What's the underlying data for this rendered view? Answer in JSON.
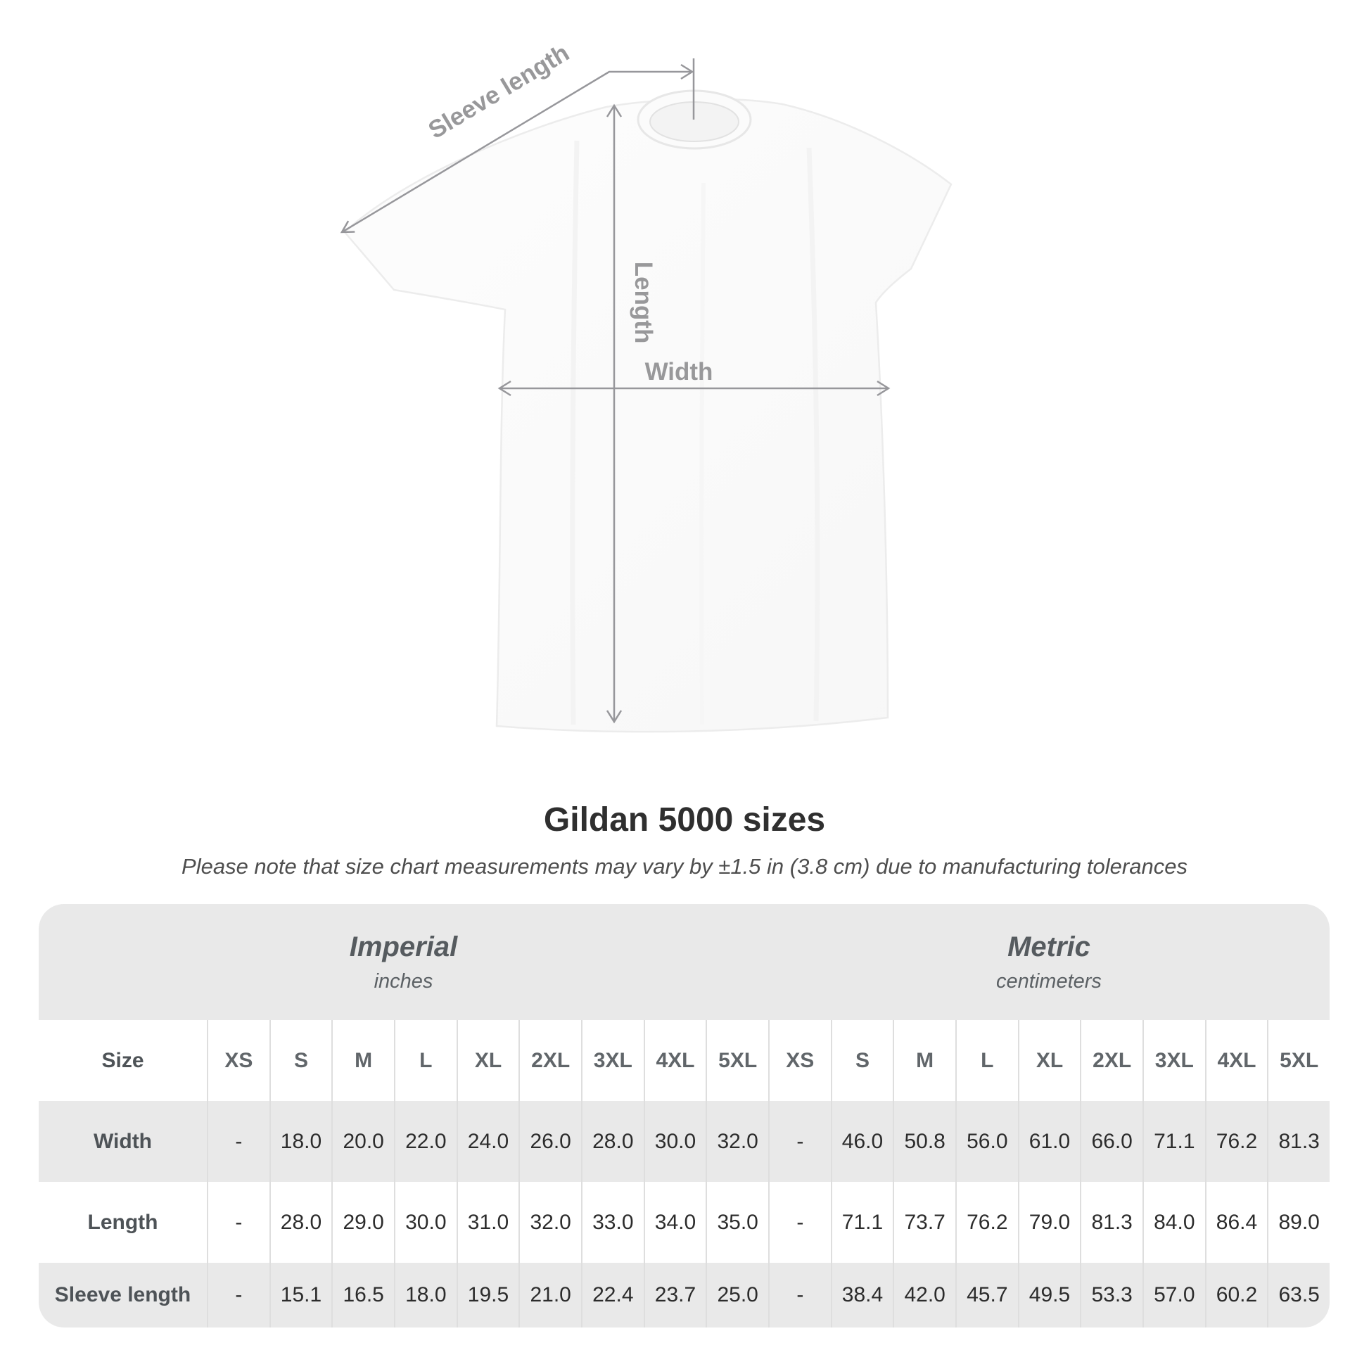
{
  "diagram": {
    "labels": {
      "sleeve_length": "Sleeve length",
      "length": "Length",
      "width": "Width"
    },
    "arrow_color": "#97979b",
    "label_color": "#98989a",
    "shirt_color": "#fcfcfc"
  },
  "title": "Gildan 5000 sizes",
  "subtitle": "Please note that size chart measurements may vary by ±1.5 in (3.8 cm) due to manufacturing tolerances",
  "table": {
    "unit_groups": [
      {
        "name": "Imperial",
        "unit": "inches"
      },
      {
        "name": "Metric",
        "unit": "centimeters"
      }
    ],
    "header": {
      "label": "Size",
      "imperial_sizes": [
        "XS",
        "S",
        "M",
        "L",
        "XL",
        "2XL",
        "3XL",
        "4XL",
        "5XL"
      ],
      "metric_sizes": [
        "XS",
        "S",
        "M",
        "L",
        "XL",
        "2XL",
        "3XL",
        "4XL",
        "5XL"
      ]
    },
    "rows": [
      {
        "label": "Width",
        "imperial": [
          "-",
          "18.0",
          "20.0",
          "22.0",
          "24.0",
          "26.0",
          "28.0",
          "30.0",
          "32.0"
        ],
        "metric": [
          "-",
          "46.0",
          "50.8",
          "56.0",
          "61.0",
          "66.0",
          "71.1",
          "76.2",
          "81.3"
        ]
      },
      {
        "label": "Length",
        "imperial": [
          "-",
          "28.0",
          "29.0",
          "30.0",
          "31.0",
          "32.0",
          "33.0",
          "34.0",
          "35.0"
        ],
        "metric": [
          "-",
          "71.1",
          "73.7",
          "76.2",
          "79.0",
          "81.3",
          "84.0",
          "86.4",
          "89.0"
        ]
      },
      {
        "label": "Sleeve length",
        "imperial": [
          "-",
          "15.1",
          "16.5",
          "18.0",
          "19.5",
          "21.0",
          "22.4",
          "23.7",
          "25.0"
        ],
        "metric": [
          "-",
          "38.4",
          "42.0",
          "45.7",
          "49.5",
          "53.3",
          "57.0",
          "60.2",
          "63.5"
        ]
      }
    ],
    "colors": {
      "container_bg": "#e9e9e9",
      "row_white_bg": "#ffffff",
      "separator": "#dedede",
      "header_text": "#61666a",
      "row_label_text": "#4e5357",
      "value_text": "#2c2c2c",
      "unit_header_text": "#565b5f"
    }
  }
}
